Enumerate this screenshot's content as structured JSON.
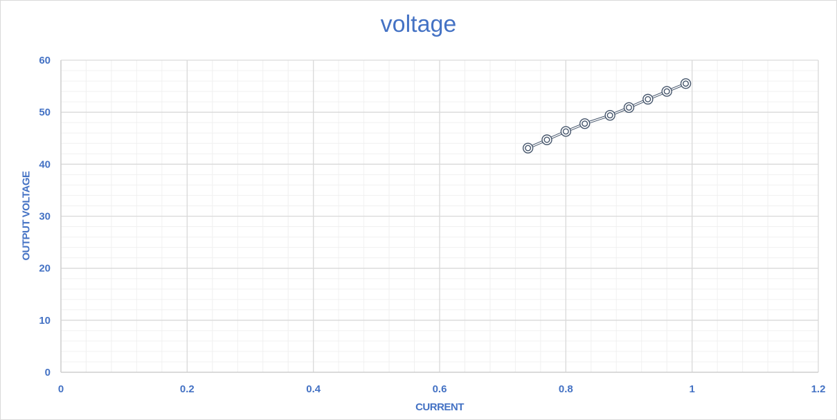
{
  "chart_data": {
    "type": "scatter",
    "title": "voltage",
    "xlabel": "CURRENT",
    "ylabel": "OUTPUT VOLTAGE",
    "xlim": [
      0,
      1.2
    ],
    "ylim": [
      0,
      60
    ],
    "x_ticks": [
      "0",
      "0.2",
      "0.4",
      "0.6",
      "0.8",
      "1",
      "1.2"
    ],
    "y_ticks": [
      "0",
      "10",
      "20",
      "30",
      "40",
      "50",
      "60"
    ],
    "grid": true,
    "minor_grid": true,
    "legend": "none",
    "series": [
      {
        "x": [
          0.74,
          0.77,
          0.8,
          0.83,
          0.87,
          0.9,
          0.93,
          0.96,
          0.99
        ],
        "y": [
          43.1,
          44.7,
          46.3,
          47.8,
          49.4,
          50.9,
          52.5,
          54.0,
          55.5
        ],
        "marker": "double-circle",
        "line": "smooth-double"
      }
    ],
    "colors": {
      "text": "#4472c4",
      "series": "#44546a",
      "grid_major": "#d9d9d9",
      "grid_minor": "#f0f0f0"
    }
  }
}
